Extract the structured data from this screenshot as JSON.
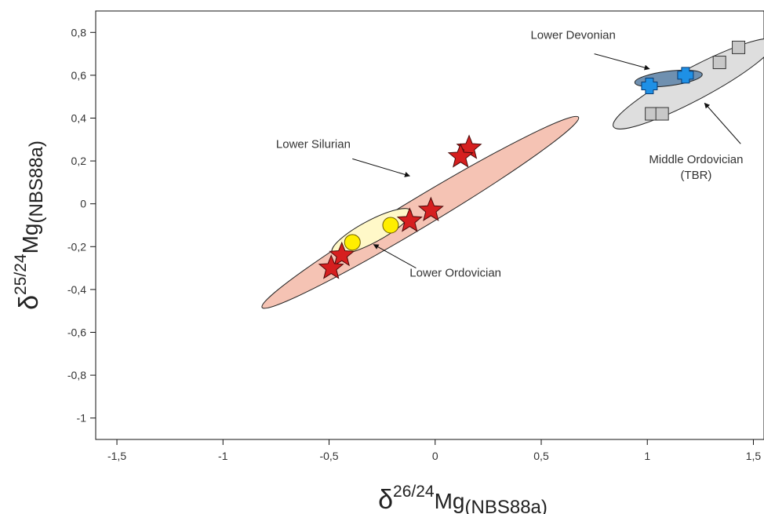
{
  "chart_data": {
    "type": "scatter",
    "xlim": [
      -1.6,
      1.55
    ],
    "ylim": [
      -1.1,
      0.9
    ],
    "x_ticks": [
      -1.5,
      -1,
      -0.5,
      0,
      0.5,
      1,
      1.5
    ],
    "x_tick_labels": [
      "-1,5",
      "-1",
      "-0,5",
      "0",
      "0,5",
      "1",
      "1,5"
    ],
    "y_ticks": [
      -1,
      -0.8,
      -0.6,
      -0.4,
      -0.2,
      0,
      0.2,
      0.4,
      0.6,
      0.8
    ],
    "y_tick_labels": [
      "-1",
      "-0,8",
      "-0,6",
      "-0,4",
      "-0,2",
      "0",
      "0,2",
      "0,4",
      "0,6",
      "0,8"
    ],
    "xlabel": {
      "delta": "δ",
      "sup": "26/24",
      "main": "Mg",
      "sub": "(NBS88a)"
    },
    "ylabel": {
      "delta": "δ",
      "sup": "25/24",
      "main": "Mg",
      "sub": "(NBS88a)"
    },
    "grid": false,
    "colors": {
      "lower_silurian_fill": "#f5c3b4",
      "lower_ordovician_fill": "#fff8c8",
      "middle_ordovician_fill": "#dedede",
      "lower_devonian_fill": "#6f90b0",
      "star": "#d61f1f",
      "circle": "#ffee00",
      "cross": "#1e90e6",
      "square": "#c8c8c8"
    },
    "series": [
      {
        "marker": "star",
        "points": [
          [
            0.16,
            0.26
          ],
          [
            0.12,
            0.22
          ],
          [
            -0.02,
            -0.03
          ],
          [
            -0.12,
            -0.08
          ],
          [
            -0.44,
            -0.24
          ],
          [
            -0.49,
            -0.3
          ]
        ]
      },
      {
        "marker": "circle",
        "points": [
          [
            -0.21,
            -0.1
          ],
          [
            -0.39,
            -0.18
          ]
        ]
      },
      {
        "marker": "cross",
        "points": [
          [
            1.01,
            0.55
          ],
          [
            1.18,
            0.6
          ]
        ]
      },
      {
        "marker": "square",
        "points": [
          [
            1.34,
            0.66
          ],
          [
            1.43,
            0.73
          ],
          [
            1.02,
            0.42
          ],
          [
            1.07,
            0.42
          ]
        ]
      }
    ],
    "regions": [
      {
        "cx": -0.07,
        "cy": -0.04,
        "rx": 0.87,
        "ry": 0.068,
        "angle_deg": 31,
        "fill_key": "lower_silurian_fill"
      },
      {
        "cx": -0.3,
        "cy": -0.13,
        "rx": 0.21,
        "ry": 0.052,
        "angle_deg": 28,
        "fill_key": "lower_ordovician_fill"
      },
      {
        "cx": 1.22,
        "cy": 0.56,
        "rx": 0.43,
        "ry": 0.075,
        "angle_deg": 28,
        "fill_key": "middle_ordovician_fill"
      },
      {
        "cx": 1.1,
        "cy": 0.585,
        "rx": 0.16,
        "ry": 0.034,
        "angle_deg": 7,
        "fill_key": "lower_devonian_fill"
      }
    ],
    "annotations": [
      {
        "lines": [
          "Lower Silurian"
        ],
        "x": -0.75,
        "y": 0.26,
        "anchor": "start",
        "arrow_from": [
          -0.39,
          0.21
        ],
        "arrow_to": [
          -0.12,
          0.13
        ]
      },
      {
        "lines": [
          "Lower Ordovician"
        ],
        "x": -0.12,
        "y": -0.34,
        "anchor": "start",
        "arrow_from": [
          -0.09,
          -0.3
        ],
        "arrow_to": [
          -0.29,
          -0.19
        ]
      },
      {
        "lines": [
          "Lower Devonian"
        ],
        "x": 0.45,
        "y": 0.77,
        "anchor": "start",
        "arrow_from": [
          0.75,
          0.7
        ],
        "arrow_to": [
          1.01,
          0.63
        ]
      },
      {
        "lines": [
          "Middle Ordovician",
          "(TBR)"
        ],
        "x": 1.23,
        "y": 0.19,
        "anchor": "middle",
        "arrow_from": [
          1.44,
          0.28
        ],
        "arrow_to": [
          1.27,
          0.47
        ]
      }
    ]
  }
}
